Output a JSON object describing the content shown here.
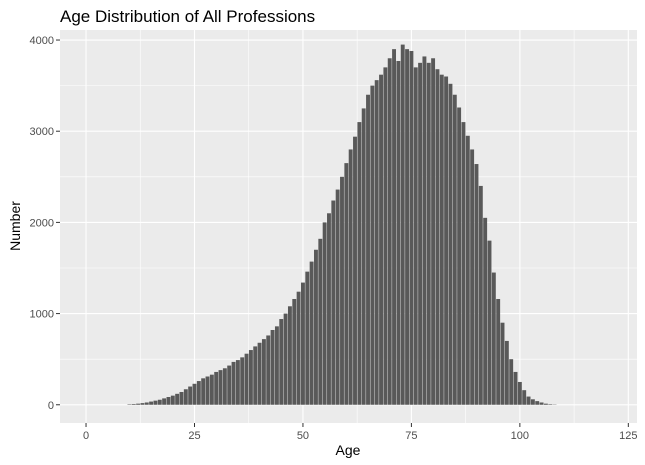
{
  "chart_data": {
    "type": "bar",
    "title": "Age Distribution of All Professions",
    "xlabel": "Age",
    "ylabel": "Number",
    "xlim": [
      -6,
      127
    ],
    "ylim": [
      -200,
      4110
    ],
    "x_ticks": [
      0,
      25,
      50,
      75,
      100,
      125
    ],
    "y_ticks": [
      0,
      1000,
      2000,
      3000,
      4000
    ],
    "x_tick_labels": [
      "0",
      "25",
      "50",
      "75",
      "100",
      "125"
    ],
    "y_tick_labels": [
      "0",
      "1000",
      "2000",
      "3000",
      "4000"
    ],
    "grid": true,
    "legend": "none",
    "colors": {
      "bar": "#595959",
      "panel": "#ebebeb",
      "grid": "#ffffff"
    },
    "x": [
      10,
      11,
      12,
      13,
      14,
      15,
      16,
      17,
      18,
      19,
      20,
      21,
      22,
      23,
      24,
      25,
      26,
      27,
      28,
      29,
      30,
      31,
      32,
      33,
      34,
      35,
      36,
      37,
      38,
      39,
      40,
      41,
      42,
      43,
      44,
      45,
      46,
      47,
      48,
      49,
      50,
      51,
      52,
      53,
      54,
      55,
      56,
      57,
      58,
      59,
      60,
      61,
      62,
      63,
      64,
      65,
      66,
      67,
      68,
      69,
      70,
      71,
      72,
      73,
      74,
      75,
      76,
      77,
      78,
      79,
      80,
      81,
      82,
      83,
      84,
      85,
      86,
      87,
      88,
      89,
      90,
      91,
      92,
      93,
      94,
      95,
      96,
      97,
      98,
      99,
      100,
      101,
      102,
      103,
      104,
      105,
      106,
      107,
      108
    ],
    "values": [
      5,
      8,
      12,
      18,
      25,
      35,
      45,
      55,
      70,
      85,
      100,
      120,
      140,
      170,
      200,
      230,
      260,
      290,
      310,
      330,
      360,
      380,
      400,
      430,
      470,
      490,
      520,
      560,
      600,
      640,
      680,
      720,
      760,
      820,
      860,
      940,
      1000,
      1080,
      1160,
      1240,
      1340,
      1460,
      1570,
      1700,
      1820,
      2000,
      2100,
      2240,
      2360,
      2500,
      2650,
      2800,
      2940,
      3100,
      3250,
      3400,
      3500,
      3560,
      3620,
      3700,
      3800,
      3900,
      3770,
      3950,
      3900,
      3880,
      3700,
      3750,
      3820,
      3750,
      3800,
      3680,
      3620,
      3600,
      3520,
      3400,
      3260,
      3100,
      2950,
      2800,
      2640,
      2400,
      2050,
      1800,
      1450,
      1160,
      900,
      700,
      500,
      360,
      250,
      160,
      90,
      60,
      40,
      25,
      12,
      6,
      3
    ]
  }
}
